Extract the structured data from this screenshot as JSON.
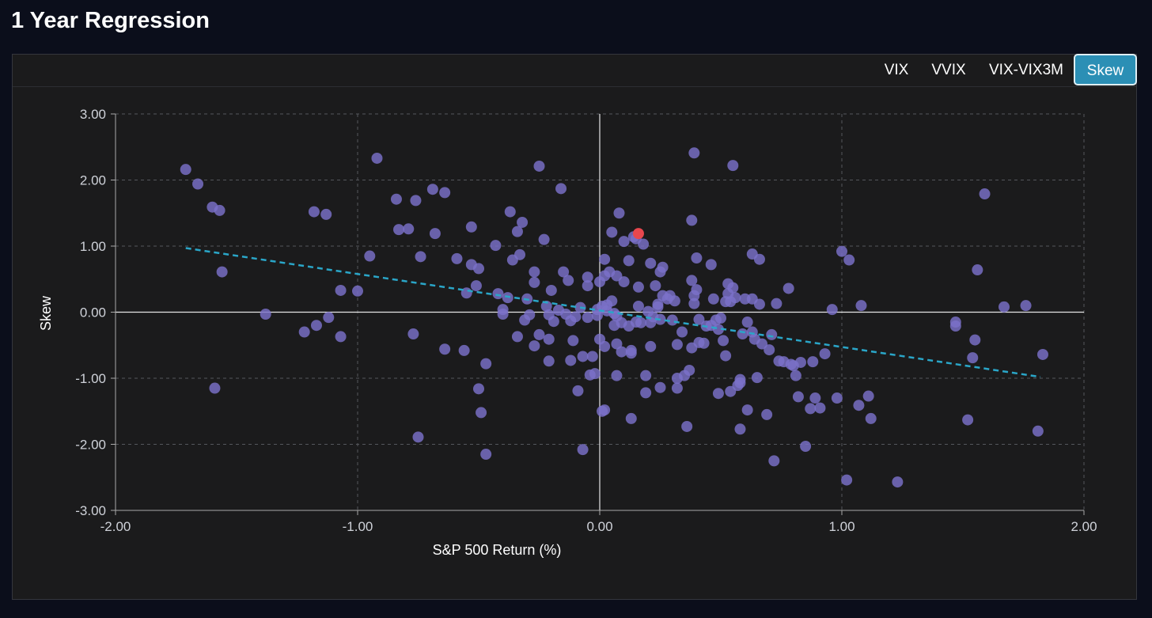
{
  "page": {
    "title": "1 Year Regression"
  },
  "tabs": [
    {
      "label": "VIX",
      "active": false
    },
    {
      "label": "VVIX",
      "active": false
    },
    {
      "label": "VIX-VIX3M",
      "active": false
    },
    {
      "label": "Skew",
      "active": true
    }
  ],
  "colors": {
    "background": "#0b0e1b",
    "panel": "#1b1b1c",
    "point": "#7b72c9",
    "highlight_point": "#e8474e",
    "regression_line": "#2aa6c8",
    "active_tab": "#2b8fb5"
  },
  "chart_data": {
    "type": "scatter",
    "title": "",
    "xlabel": "S&P 500 Return (%)",
    "ylabel": "Skew",
    "xlim": [
      -2.0,
      2.0
    ],
    "ylim": [
      -3.0,
      3.0
    ],
    "x_ticks": [
      "-2.00",
      "-1.00",
      "0.00",
      "1.00",
      "2.00"
    ],
    "y_ticks": [
      "3.00",
      "2.00",
      "1.00",
      "0.00",
      "-1.00",
      "-2.00",
      "-3.00"
    ],
    "grid": true,
    "grid_style": "dashed",
    "zero_lines": true,
    "regression_line": {
      "x": [
        -1.71,
        1.82
      ],
      "y": [
        0.97,
        -0.98
      ],
      "style": "dashed"
    },
    "highlight": {
      "x": 0.16,
      "y": 1.19
    },
    "points": [
      [
        -1.71,
        2.16
      ],
      [
        -1.66,
        1.94
      ],
      [
        -1.6,
        1.59
      ],
      [
        -1.57,
        1.54
      ],
      [
        -1.56,
        0.61
      ],
      [
        -1.59,
        -1.15
      ],
      [
        -1.38,
        -0.03
      ],
      [
        -1.22,
        -0.3
      ],
      [
        -1.18,
        1.52
      ],
      [
        -1.13,
        1.48
      ],
      [
        -1.17,
        -0.2
      ],
      [
        -1.12,
        -0.08
      ],
      [
        -1.07,
        0.33
      ],
      [
        -1.07,
        -0.37
      ],
      [
        -1.0,
        0.32
      ],
      [
        -0.95,
        0.85
      ],
      [
        -0.92,
        2.33
      ],
      [
        -0.84,
        1.71
      ],
      [
        -0.83,
        1.25
      ],
      [
        -0.79,
        1.26
      ],
      [
        -0.76,
        1.69
      ],
      [
        -0.77,
        -0.33
      ],
      [
        -0.75,
        -1.89
      ],
      [
        -0.74,
        0.84
      ],
      [
        -0.69,
        1.86
      ],
      [
        -0.68,
        1.19
      ],
      [
        -0.64,
        1.81
      ],
      [
        -0.64,
        -0.56
      ],
      [
        -0.59,
        0.81
      ],
      [
        -0.56,
        -0.58
      ],
      [
        -0.55,
        0.29
      ],
      [
        -0.53,
        1.29
      ],
      [
        -0.53,
        0.72
      ],
      [
        -0.5,
        0.66
      ],
      [
        -0.51,
        0.4
      ],
      [
        -0.5,
        -1.16
      ],
      [
        -0.49,
        -1.52
      ],
      [
        -0.47,
        -0.78
      ],
      [
        -0.47,
        -2.15
      ],
      [
        -0.43,
        1.01
      ],
      [
        -0.42,
        0.28
      ],
      [
        -0.4,
        -0.03
      ],
      [
        -0.4,
        0.04
      ],
      [
        -0.38,
        0.22
      ],
      [
        -0.37,
        1.52
      ],
      [
        -0.36,
        0.79
      ],
      [
        -0.34,
        1.22
      ],
      [
        -0.33,
        0.87
      ],
      [
        -0.34,
        -0.37
      ],
      [
        -0.32,
        1.36
      ],
      [
        -0.31,
        -0.12
      ],
      [
        -0.3,
        0.2
      ],
      [
        -0.29,
        -0.04
      ],
      [
        -0.27,
        0.61
      ],
      [
        -0.27,
        0.45
      ],
      [
        -0.27,
        -0.51
      ],
      [
        -0.25,
        2.21
      ],
      [
        -0.25,
        -0.34
      ],
      [
        -0.23,
        1.1
      ],
      [
        -0.22,
        0.09
      ],
      [
        -0.21,
        -0.04
      ],
      [
        -0.21,
        -0.41
      ],
      [
        -0.2,
        0.33
      ],
      [
        -0.21,
        -0.74
      ],
      [
        -0.19,
        -0.14
      ],
      [
        -0.17,
        0.03
      ],
      [
        -0.16,
        1.87
      ],
      [
        -0.15,
        0.61
      ],
      [
        -0.14,
        -0.03
      ],
      [
        -0.13,
        0.48
      ],
      [
        -0.12,
        -0.13
      ],
      [
        -0.12,
        -0.73
      ],
      [
        -0.11,
        -0.43
      ],
      [
        -0.1,
        -0.07
      ],
      [
        -0.09,
        -1.19
      ],
      [
        -0.08,
        0.07
      ],
      [
        -0.07,
        -2.08
      ],
      [
        -0.07,
        -0.67
      ],
      [
        -0.05,
        0.53
      ],
      [
        -0.05,
        0.4
      ],
      [
        -0.05,
        -0.08
      ],
      [
        -0.04,
        -0.95
      ],
      [
        -0.03,
        -0.67
      ],
      [
        -0.02,
        -0.93
      ],
      [
        -0.01,
        0.04
      ],
      [
        -0.01,
        -0.05
      ],
      [
        0.0,
        -0.41
      ],
      [
        0.0,
        0.46
      ],
      [
        0.01,
        -1.5
      ],
      [
        0.01,
        0.09
      ],
      [
        0.02,
        0.8
      ],
      [
        0.02,
        -0.52
      ],
      [
        0.02,
        -1.48
      ],
      [
        0.02,
        0.55
      ],
      [
        0.03,
        0.11
      ],
      [
        0.03,
        0.02
      ],
      [
        0.04,
        0.61
      ],
      [
        0.05,
        1.21
      ],
      [
        0.05,
        0.17
      ],
      [
        0.06,
        -0.02
      ],
      [
        0.06,
        -0.2
      ],
      [
        0.07,
        -0.06
      ],
      [
        0.07,
        0.55
      ],
      [
        0.07,
        -0.48
      ],
      [
        0.07,
        -0.96
      ],
      [
        0.08,
        1.5
      ],
      [
        0.09,
        -0.16
      ],
      [
        0.09,
        -0.6
      ],
      [
        0.1,
        1.07
      ],
      [
        0.1,
        0.46
      ],
      [
        0.12,
        0.78
      ],
      [
        0.12,
        -0.21
      ],
      [
        0.13,
        -0.58
      ],
      [
        0.13,
        -0.62
      ],
      [
        0.13,
        -1.61
      ],
      [
        0.14,
        1.14
      ],
      [
        0.15,
        1.11
      ],
      [
        0.15,
        -0.15
      ],
      [
        0.16,
        0.38
      ],
      [
        0.16,
        0.09
      ],
      [
        0.17,
        -0.16
      ],
      [
        0.18,
        1.03
      ],
      [
        0.19,
        -0.96
      ],
      [
        0.19,
        -1.22
      ],
      [
        0.2,
        0.01
      ],
      [
        0.21,
        0.74
      ],
      [
        0.21,
        -0.16
      ],
      [
        0.21,
        -0.52
      ],
      [
        0.22,
        -0.07
      ],
      [
        0.23,
        0.4
      ],
      [
        0.24,
        0.08
      ],
      [
        0.24,
        0.12
      ],
      [
        0.25,
        -0.11
      ],
      [
        0.25,
        -1.14
      ],
      [
        0.25,
        0.61
      ],
      [
        0.26,
        0.68
      ],
      [
        0.26,
        0.25
      ],
      [
        0.28,
        0.2
      ],
      [
        0.29,
        0.25
      ],
      [
        0.3,
        -0.12
      ],
      [
        0.31,
        0.17
      ],
      [
        0.32,
        -0.49
      ],
      [
        0.32,
        -1.15
      ],
      [
        0.32,
        -1.0
      ],
      [
        0.34,
        -0.3
      ],
      [
        0.35,
        -0.96
      ],
      [
        0.36,
        -1.73
      ],
      [
        0.37,
        -0.88
      ],
      [
        0.38,
        1.39
      ],
      [
        0.38,
        -0.54
      ],
      [
        0.38,
        0.48
      ],
      [
        0.39,
        2.41
      ],
      [
        0.39,
        0.13
      ],
      [
        0.39,
        0.25
      ],
      [
        0.4,
        0.34
      ],
      [
        0.4,
        0.82
      ],
      [
        0.41,
        -0.46
      ],
      [
        0.41,
        -0.11
      ],
      [
        0.43,
        -0.47
      ],
      [
        0.44,
        -0.21
      ],
      [
        0.46,
        0.72
      ],
      [
        0.46,
        -0.2
      ],
      [
        0.47,
        0.2
      ],
      [
        0.48,
        -0.12
      ],
      [
        0.49,
        -1.23
      ],
      [
        0.49,
        -0.26
      ],
      [
        0.5,
        -0.09
      ],
      [
        0.51,
        -0.43
      ],
      [
        0.52,
        -0.66
      ],
      [
        0.52,
        0.16
      ],
      [
        0.53,
        0.43
      ],
      [
        0.53,
        0.28
      ],
      [
        0.54,
        -1.2
      ],
      [
        0.54,
        0.16
      ],
      [
        0.55,
        2.22
      ],
      [
        0.55,
        0.37
      ],
      [
        0.56,
        0.22
      ],
      [
        0.57,
        -1.11
      ],
      [
        0.58,
        -1.77
      ],
      [
        0.58,
        -1.02
      ],
      [
        0.58,
        -1.07
      ],
      [
        0.59,
        -0.33
      ],
      [
        0.6,
        0.2
      ],
      [
        0.61,
        -1.48
      ],
      [
        0.61,
        -0.15
      ],
      [
        0.63,
        0.88
      ],
      [
        0.63,
        -0.3
      ],
      [
        0.63,
        0.2
      ],
      [
        0.64,
        -0.41
      ],
      [
        0.65,
        -0.99
      ],
      [
        0.66,
        0.12
      ],
      [
        0.66,
        0.8
      ],
      [
        0.67,
        -0.48
      ],
      [
        0.69,
        -1.55
      ],
      [
        0.7,
        -0.57
      ],
      [
        0.71,
        -0.34
      ],
      [
        0.72,
        -2.25
      ],
      [
        0.73,
        0.13
      ],
      [
        0.74,
        -0.74
      ],
      [
        0.76,
        -0.75
      ],
      [
        0.78,
        0.36
      ],
      [
        0.79,
        -0.79
      ],
      [
        0.8,
        -0.81
      ],
      [
        0.81,
        -0.96
      ],
      [
        0.82,
        -1.28
      ],
      [
        0.83,
        -0.76
      ],
      [
        0.85,
        -2.03
      ],
      [
        0.87,
        -1.46
      ],
      [
        0.88,
        -0.75
      ],
      [
        0.89,
        -1.3
      ],
      [
        0.91,
        -1.45
      ],
      [
        0.93,
        -0.63
      ],
      [
        0.96,
        0.04
      ],
      [
        0.98,
        -1.3
      ],
      [
        1.0,
        0.92
      ],
      [
        1.02,
        -2.54
      ],
      [
        1.03,
        0.79
      ],
      [
        1.07,
        -1.41
      ],
      [
        1.08,
        0.1
      ],
      [
        1.11,
        -1.27
      ],
      [
        1.12,
        -1.61
      ],
      [
        1.23,
        -2.57
      ],
      [
        1.47,
        -0.15
      ],
      [
        1.47,
        -0.21
      ],
      [
        1.52,
        -1.63
      ],
      [
        1.54,
        -0.69
      ],
      [
        1.55,
        -0.42
      ],
      [
        1.56,
        0.64
      ],
      [
        1.59,
        1.79
      ],
      [
        1.67,
        0.08
      ],
      [
        1.76,
        0.1
      ],
      [
        1.81,
        -1.8
      ],
      [
        1.83,
        -0.64
      ]
    ]
  }
}
